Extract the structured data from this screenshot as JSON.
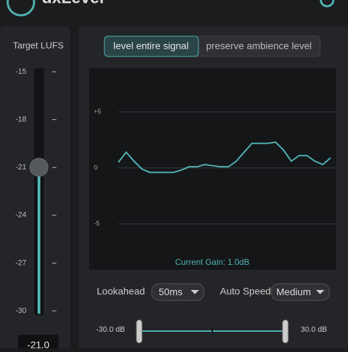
{
  "header": {
    "title": "dxLevel"
  },
  "left_panel": {
    "title": "Target LUFS",
    "scale": [
      "-15",
      "-18",
      "-21",
      "-24",
      "-27",
      "-30"
    ],
    "value": "-21.0"
  },
  "mode_toggle": {
    "options": [
      "level entire signal",
      "preserve ambience level"
    ],
    "active": 0
  },
  "gain_graph": {
    "yticks": [
      {
        "value": 5,
        "label": "+5"
      },
      0,
      {
        "value": -5,
        "label": "-5"
      }
    ],
    "ylim": [
      -9.1,
      8.9
    ],
    "values": [
      0.5,
      1.4,
      0.6,
      -0.1,
      -0.4,
      -0.4,
      -0.4,
      -0.4,
      -0.2,
      0.1,
      0.1,
      0.3,
      0.2,
      0.1,
      0.1,
      0.6,
      1.4,
      2.2,
      2.2,
      2.2,
      2.3,
      1.6,
      0.6,
      1.1,
      1.1,
      0.6,
      0.3,
      0.9
    ],
    "color": "#4fb3b3",
    "caption": "Current Gain: 1.0dB"
  },
  "controls": {
    "lookahead_label": "Lookahead",
    "lookahead_value": "50ms",
    "auto_speed_label": "Auto Speed",
    "auto_speed_value": "Medium"
  },
  "range": {
    "min_label": "-30.0 dB",
    "max_label": "30.0 dB"
  }
}
